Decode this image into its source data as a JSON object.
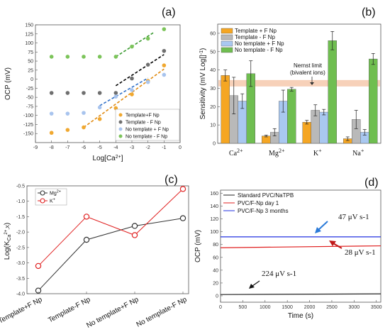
{
  "chart_data": [
    {
      "panel": "(a)",
      "type": "scatter",
      "xlabel": "Log[Ca2+]",
      "ylabel": "OCP (mV)",
      "xlim": [
        -9,
        0
      ],
      "ylim": [
        -175,
        150
      ],
      "xticks": [
        "-9",
        "-8",
        "-7",
        "-6",
        "-5",
        "-4",
        "-3",
        "-2",
        "-1",
        "0"
      ],
      "yticks": [
        "-150",
        "-125",
        "-100",
        "-75",
        "-50",
        "-25",
        "0",
        "25",
        "50",
        "75",
        "100",
        "125",
        "150"
      ],
      "legend_position": "bottom-right",
      "series": [
        {
          "name": "Template+F Np",
          "color": "#f0a830",
          "x": [
            -8,
            -7,
            -6,
            -5,
            -4,
            -3,
            -2,
            -1
          ],
          "y": [
            -148,
            -140,
            -133,
            -110,
            -80,
            -42,
            -5,
            38
          ]
        },
        {
          "name": "Template - F Np",
          "color": "#6f6f6f",
          "x": [
            -8,
            -7,
            -6,
            -5,
            -4,
            -3,
            -2,
            -1
          ],
          "y": [
            -38,
            -38,
            -38,
            -38,
            -38,
            2,
            40,
            78
          ]
        },
        {
          "name": "No template + F Np",
          "color": "#a8c4ee",
          "x": [
            -8,
            -7,
            -6,
            -5,
            -4,
            -3,
            -2,
            -1
          ],
          "y": [
            -95,
            -95,
            -93,
            -78,
            -48,
            -30,
            -8,
            12
          ]
        },
        {
          "name": "No template - F Np",
          "color": "#7cc45a",
          "x": [
            -8,
            -7,
            -6,
            -5,
            -4,
            -3,
            -2,
            -1
          ],
          "y": [
            62,
            62,
            62,
            62,
            62,
            90,
            112,
            138
          ]
        }
      ],
      "fit_lines": [
        {
          "color": "#e08a10",
          "x": [
            -6,
            -1
          ],
          "y": [
            -133,
            28
          ]
        },
        {
          "color": "#000000",
          "x": [
            -4,
            -1
          ],
          "y": [
            -18,
            68
          ]
        },
        {
          "color": "#3070c8",
          "x": [
            -5,
            -2
          ],
          "y": [
            -73,
            3
          ]
        },
        {
          "color": "#3a9a30",
          "x": [
            -4,
            -1.6
          ],
          "y": [
            62,
            130
          ]
        }
      ]
    },
    {
      "panel": "(b)",
      "type": "bar",
      "ylabel": "Sensitivity (mV Log[]-1)",
      "ylim": [
        0,
        65
      ],
      "yticks": [
        "0",
        "10",
        "20",
        "30",
        "40",
        "50",
        "60"
      ],
      "categories": [
        "Ca2+",
        "Mg2+",
        "K+",
        "Na+"
      ],
      "legend_position": "top-left",
      "series": [
        {
          "name": "Template + F Np",
          "color": "#f5a623",
          "values": [
            37,
            4,
            11.5,
            2.5
          ],
          "errors": [
            3,
            0.5,
            1,
            1
          ]
        },
        {
          "name": "Template - F Np",
          "color": "#b9b9b9",
          "values": [
            26,
            6,
            18,
            13
          ],
          "errors": [
            10,
            2,
            3,
            5
          ]
        },
        {
          "name": "No template + F Np",
          "color": "#a9c8f0",
          "values": [
            23,
            23,
            17,
            6
          ],
          "errors": [
            4,
            6,
            1.5,
            1.5
          ]
        },
        {
          "name": "No template - F Np",
          "color": "#6fbe50",
          "values": [
            38,
            29.5,
            56,
            46
          ],
          "errors": [
            7,
            1,
            5,
            3
          ]
        }
      ],
      "band": {
        "from": 31,
        "to": 34.5,
        "color": "#f6c9ad"
      },
      "annotation": "Nernst limit\n(bivalent ions)"
    },
    {
      "panel": "(c)",
      "type": "line",
      "ylabel": "Log(K Ca2+,X)",
      "ylim": [
        -4.0,
        -0.5
      ],
      "yticks": [
        "-4.0",
        "-3.5",
        "-3.0",
        "-2.5",
        "-2.0",
        "-1.5",
        "-1.0",
        "-0.5"
      ],
      "categories": [
        "Template+F Np",
        "Template-F Np",
        "No template+F Np",
        "No template-F Np"
      ],
      "legend_position": "top-left",
      "series": [
        {
          "name": "Mg2+",
          "color": "#333333",
          "values": [
            -3.9,
            -2.25,
            -1.8,
            -1.55
          ]
        },
        {
          "name": "K+",
          "color": "#e02020",
          "values": [
            -3.1,
            -1.5,
            -2.1,
            -0.6
          ]
        }
      ]
    },
    {
      "panel": "(d)",
      "type": "line",
      "xlabel": "Time (s)",
      "ylabel": "OCP (mV)",
      "xlim": [
        0,
        3600
      ],
      "ylim": [
        -10,
        165
      ],
      "xticks": [
        "0",
        "500",
        "1000",
        "1500",
        "2000",
        "2500",
        "3000",
        "3500"
      ],
      "yticks": [
        "0",
        "20",
        "40",
        "60",
        "80",
        "100",
        "120",
        "140",
        "160"
      ],
      "legend_position": "top-left",
      "series": [
        {
          "name": "Standard PVC/NaTPB",
          "color": "#222222",
          "x": [
            0,
            3600
          ],
          "y": [
            2,
            3
          ],
          "drift": "224 μV s-1"
        },
        {
          "name": "PVC/F-Np day 1",
          "color": "#e02020",
          "x": [
            0,
            3600
          ],
          "y": [
            75,
            78
          ],
          "drift": "28 μV s-1"
        },
        {
          "name": "PVC/F-Np 3 months",
          "color": "#2030e0",
          "x": [
            0,
            3600
          ],
          "y": [
            92,
            92
          ],
          "drift": "47 μV s-1"
        }
      ]
    }
  ]
}
